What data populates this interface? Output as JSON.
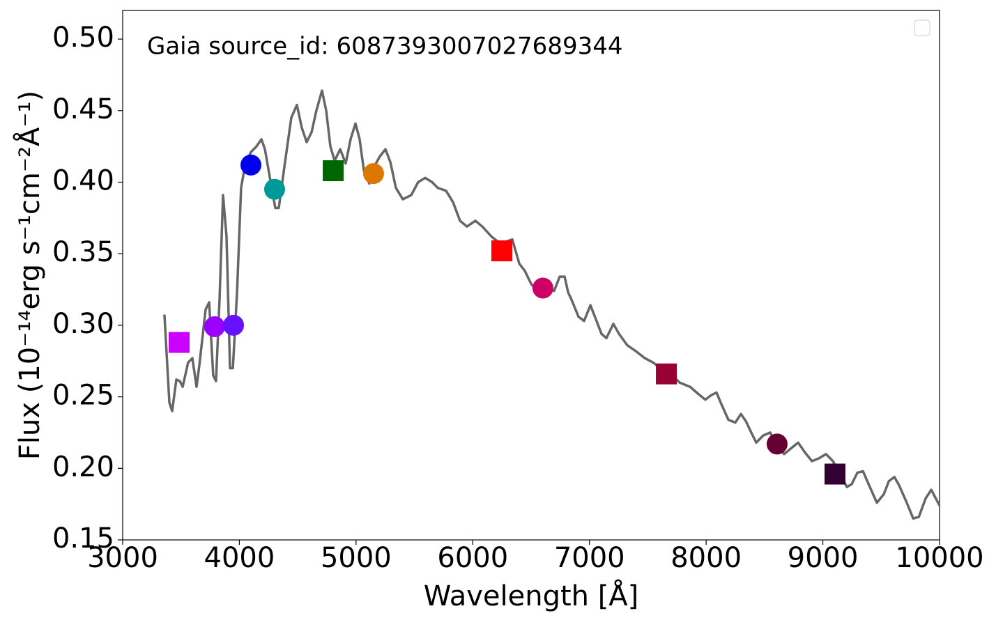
{
  "chart_data": {
    "type": "line",
    "annotation": "Gaia source_id: 6087393007027689344",
    "xlabel": "Wavelength [Å]",
    "ylabel": "Flux (10⁻¹⁴erg s⁻¹cm⁻²Å⁻¹)",
    "xlim": [
      3000,
      10000
    ],
    "xticks": [
      3000,
      4000,
      5000,
      6000,
      7000,
      8000,
      9000,
      10000
    ],
    "ylim": [
      0.15,
      0.52
    ],
    "yticks": [
      0.15,
      {
        "value": 0.2,
        "label": "0.20"
      },
      0.25,
      {
        "value": 0.3,
        "label": "0.30"
      },
      0.35,
      {
        "value": 0.4,
        "label": "0.40"
      },
      0.45,
      {
        "value": 0.5,
        "label": "0.50"
      }
    ],
    "line": {
      "color": "#666666",
      "x": [
        3358,
        3400,
        3424,
        3460,
        3490,
        3514,
        3561,
        3597,
        3633,
        3657,
        3711,
        3741,
        3776,
        3800,
        3830,
        3860,
        3890,
        3920,
        3944,
        3980,
        4015,
        4051,
        4099,
        4147,
        4189,
        4219,
        4266,
        4308,
        4338,
        4386,
        4445,
        4493,
        4535,
        4577,
        4619,
        4660,
        4708,
        4744,
        4780,
        4816,
        4864,
        4911,
        4953,
        4995,
        5031,
        5067,
        5114,
        5156,
        5204,
        5252,
        5294,
        5341,
        5401,
        5473,
        5532,
        5592,
        5652,
        5700,
        5771,
        5831,
        5891,
        5950,
        6022,
        6082,
        6160,
        6237,
        6339,
        6399,
        6446,
        6500,
        6560,
        6637,
        6697,
        6745,
        6787,
        6817,
        6846,
        6906,
        6954,
        7008,
        7056,
        7103,
        7145,
        7205,
        7253,
        7324,
        7396,
        7474,
        7545,
        7623,
        7712,
        7772,
        7862,
        7933,
        7993,
        8041,
        8089,
        8130,
        8190,
        8250,
        8298,
        8340,
        8381,
        8429,
        8489,
        8549,
        8609,
        8668,
        8728,
        8788,
        8848,
        8907,
        8967,
        9027,
        9087,
        9146,
        9206,
        9248,
        9296,
        9344,
        9403,
        9463,
        9523,
        9565,
        9613,
        9654,
        9714,
        9774,
        9822,
        9881,
        9929,
        10000
      ],
      "values": [
        0.3075,
        0.246,
        0.24,
        0.262,
        0.261,
        0.257,
        0.274,
        0.277,
        0.257,
        0.272,
        0.311,
        0.316,
        0.265,
        0.261,
        0.318,
        0.391,
        0.362,
        0.27,
        0.27,
        0.323,
        0.396,
        0.413,
        0.421,
        0.425,
        0.43,
        0.423,
        0.401,
        0.382,
        0.382,
        0.411,
        0.445,
        0.454,
        0.438,
        0.428,
        0.435,
        0.45,
        0.464,
        0.45,
        0.425,
        0.415,
        0.423,
        0.413,
        0.43,
        0.441,
        0.43,
        0.408,
        0.399,
        0.411,
        0.418,
        0.423,
        0.414,
        0.396,
        0.388,
        0.391,
        0.4,
        0.403,
        0.4,
        0.396,
        0.394,
        0.386,
        0.373,
        0.369,
        0.373,
        0.369,
        0.362,
        0.357,
        0.36,
        0.343,
        0.338,
        0.329,
        0.323,
        0.327,
        0.324,
        0.334,
        0.334,
        0.323,
        0.318,
        0.306,
        0.303,
        0.314,
        0.304,
        0.294,
        0.291,
        0.301,
        0.294,
        0.286,
        0.282,
        0.277,
        0.274,
        0.269,
        0.265,
        0.26,
        0.257,
        0.252,
        0.248,
        0.251,
        0.253,
        0.245,
        0.234,
        0.232,
        0.238,
        0.233,
        0.226,
        0.218,
        0.223,
        0.225,
        0.216,
        0.21,
        0.214,
        0.218,
        0.211,
        0.205,
        0.207,
        0.21,
        0.205,
        0.196,
        0.187,
        0.189,
        0.197,
        0.198,
        0.187,
        0.176,
        0.182,
        0.191,
        0.194,
        0.188,
        0.177,
        0.165,
        0.166,
        0.179,
        0.185,
        0.174
      ]
    },
    "points": {
      "x": [
        3484,
        3788,
        3950,
        4099,
        4302,
        4804,
        5150,
        6249,
        6601,
        7659,
        8608,
        9104
      ],
      "values": [
        0.288,
        0.299,
        0.3,
        0.412,
        0.395,
        0.408,
        0.406,
        0.352,
        0.326,
        0.266,
        0.217,
        0.196
      ],
      "colors": [
        "#cc00ff",
        "#9900ff",
        "#6611ff",
        "#0000ee",
        "#009999",
        "#006600",
        "#dd7700",
        "#ff0000",
        "#cc0066",
        "#990033",
        "#660033",
        "#330033"
      ],
      "markers": [
        "square",
        "circle",
        "circle",
        "circle",
        "circle",
        "square",
        "circle",
        "square",
        "circle",
        "square",
        "circle",
        "square"
      ]
    }
  }
}
